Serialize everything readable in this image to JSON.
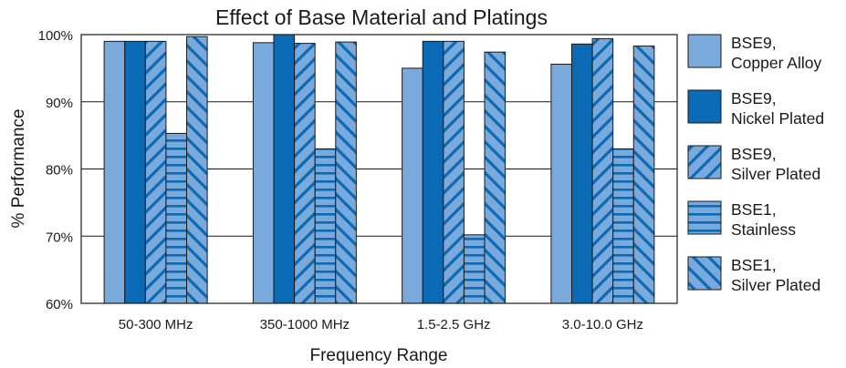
{
  "chart_data": {
    "type": "bar",
    "title": "Effect of Base Material and Platings",
    "xlabel": "Frequency Range",
    "ylabel": "% Performance",
    "ylim": [
      60,
      100
    ],
    "yticks": [
      {
        "value": 60,
        "label": "60%"
      },
      {
        "value": 70,
        "label": "70%"
      },
      {
        "value": 80,
        "label": "80%"
      },
      {
        "value": 90,
        "label": "90%"
      },
      {
        "value": 100,
        "label": "100%"
      }
    ],
    "grid": true,
    "legend_position": "right",
    "categories": [
      "50-300 MHz",
      "350-1000 MHz",
      "1.5-2.5 GHz",
      "3.0-10.0 GHz"
    ],
    "series": [
      {
        "name_lines": [
          "BSE9,",
          "Copper Alloy"
        ],
        "pattern": "solid-light",
        "color": "#7aaadb",
        "values": [
          99,
          98.8,
          95,
          95.6
        ]
      },
      {
        "name_lines": [
          "BSE9,",
          "Nickel Plated"
        ],
        "pattern": "solid-dark",
        "color": "#0a6ab6",
        "values": [
          99,
          100,
          99,
          98.6
        ]
      },
      {
        "name_lines": [
          "BSE9,",
          "Silver Plated"
        ],
        "pattern": "diagonal-forward",
        "color": "#7aaadb",
        "values": [
          99,
          98.7,
          99,
          99.4
        ]
      },
      {
        "name_lines": [
          "BSE1,",
          "Stainless"
        ],
        "pattern": "horizontal",
        "color": "#7aaadb",
        "values": [
          85.3,
          83,
          70.2,
          83
        ]
      },
      {
        "name_lines": [
          "BSE1,",
          "Silver Plated"
        ],
        "pattern": "diagonal-back",
        "color": "#7aaadb",
        "values": [
          99.7,
          98.9,
          97.4,
          98.3
        ]
      }
    ]
  }
}
